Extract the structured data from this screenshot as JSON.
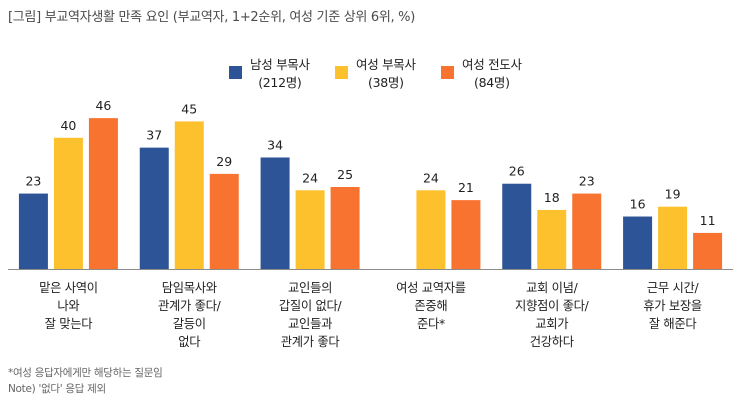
{
  "title": "[그림] 부교역자생활 만족 요인 (부교역자, 1+2순위, 여성 기준 상위 6위, %)",
  "legend": [
    {
      "name": "남성 부목사",
      "count": "(212명)"
    },
    {
      "name": "여성 부목사",
      "count": "(38명)"
    },
    {
      "name": "여성 전도사",
      "count": "(84명)"
    }
  ],
  "footnotes": {
    "line1": "*여성 응답자에게만 해당하는 질문임",
    "line2": "Note) '없다' 응답 제외"
  },
  "chart_data": {
    "type": "bar",
    "title": "[그림] 부교역자생활 만족 요인 (부교역자, 1+2순위, 여성 기준 상위 6위, %)",
    "xlabel": "",
    "ylabel": "",
    "ylim": [
      0,
      50
    ],
    "grid": false,
    "legend_position": "top-center",
    "colors": [
      "#2c5496",
      "#fdc12e",
      "#f97330"
    ],
    "categories": [
      [
        "맡은 사역이",
        "나와",
        "잘 맞는다"
      ],
      [
        "담임목사와",
        "관계가 좋다/",
        "갈등이",
        "없다"
      ],
      [
        "교인들의",
        "갑질이 없다/",
        "교인들과",
        "관계가 좋다"
      ],
      [
        "여성 교역자를",
        "존중해",
        "준다*"
      ],
      [
        "교회 이념/",
        "지향점이 좋다/",
        "교회가",
        "건강하다"
      ],
      [
        "근무 시간/",
        "휴가 보장을",
        "잘 해준다"
      ]
    ],
    "series": [
      {
        "name": "남성 부목사 (212명)",
        "values": [
          23,
          37,
          34,
          null,
          26,
          16
        ]
      },
      {
        "name": "여성 부목사 (38명)",
        "values": [
          40,
          45,
          24,
          24,
          18,
          19
        ]
      },
      {
        "name": "여성 전도사 (84명)",
        "values": [
          46,
          29,
          25,
          21,
          23,
          11
        ]
      }
    ]
  }
}
